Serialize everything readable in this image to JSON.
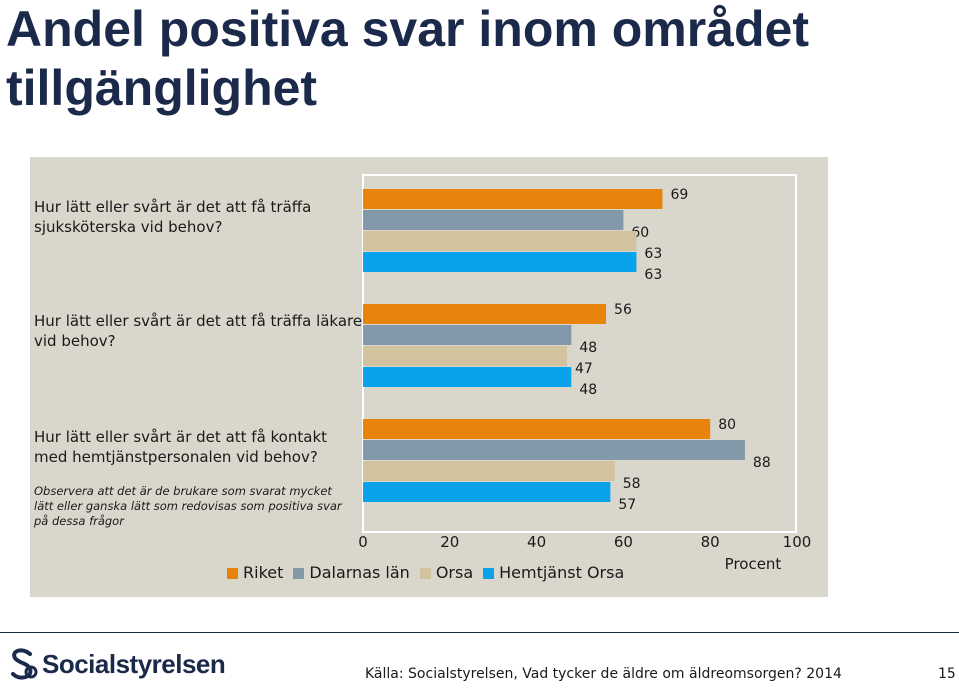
{
  "title": "Andel positiva svar inom området tillgänglighet",
  "chart_data": {
    "type": "bar",
    "orientation": "horizontal",
    "categories": [
      "Hur lätt eller svårt är det att få träffa sjuksköterska vid behov?",
      "Hur lätt eller svårt är det att få träffa läkare vid behov?",
      "Hur lätt eller svårt är det att få kontakt med hemtjänstpersonalen vid behov?"
    ],
    "series": [
      {
        "name": "Riket",
        "color": "#e8840c",
        "values": [
          69,
          56,
          80
        ]
      },
      {
        "name": "Dalarnas län",
        "color": "#8398a9",
        "values": [
          60,
          48,
          88
        ]
      },
      {
        "name": "Orsa",
        "color": "#d2c29e",
        "values": [
          63,
          47,
          58
        ]
      },
      {
        "name": "Hemtjänst Orsa",
        "color": "#0aa3eb",
        "values": [
          63,
          48,
          57
        ]
      }
    ],
    "xlim": [
      0,
      100
    ],
    "xticks": [
      "0",
      "20",
      "40",
      "60",
      "80",
      "100"
    ],
    "xlabel": "Procent",
    "note": "Observera att det är de brukare som svarat mycket lätt eller ganska lätt som redovisas som positiva svar på dessa frågor",
    "legend_position": "bottom"
  },
  "footer": {
    "logo_text": "Socialstyrelsen",
    "source": "Källa: Socialstyrelsen, Vad tycker de äldre om äldreomsorgen? 2014",
    "page_number": "15"
  }
}
